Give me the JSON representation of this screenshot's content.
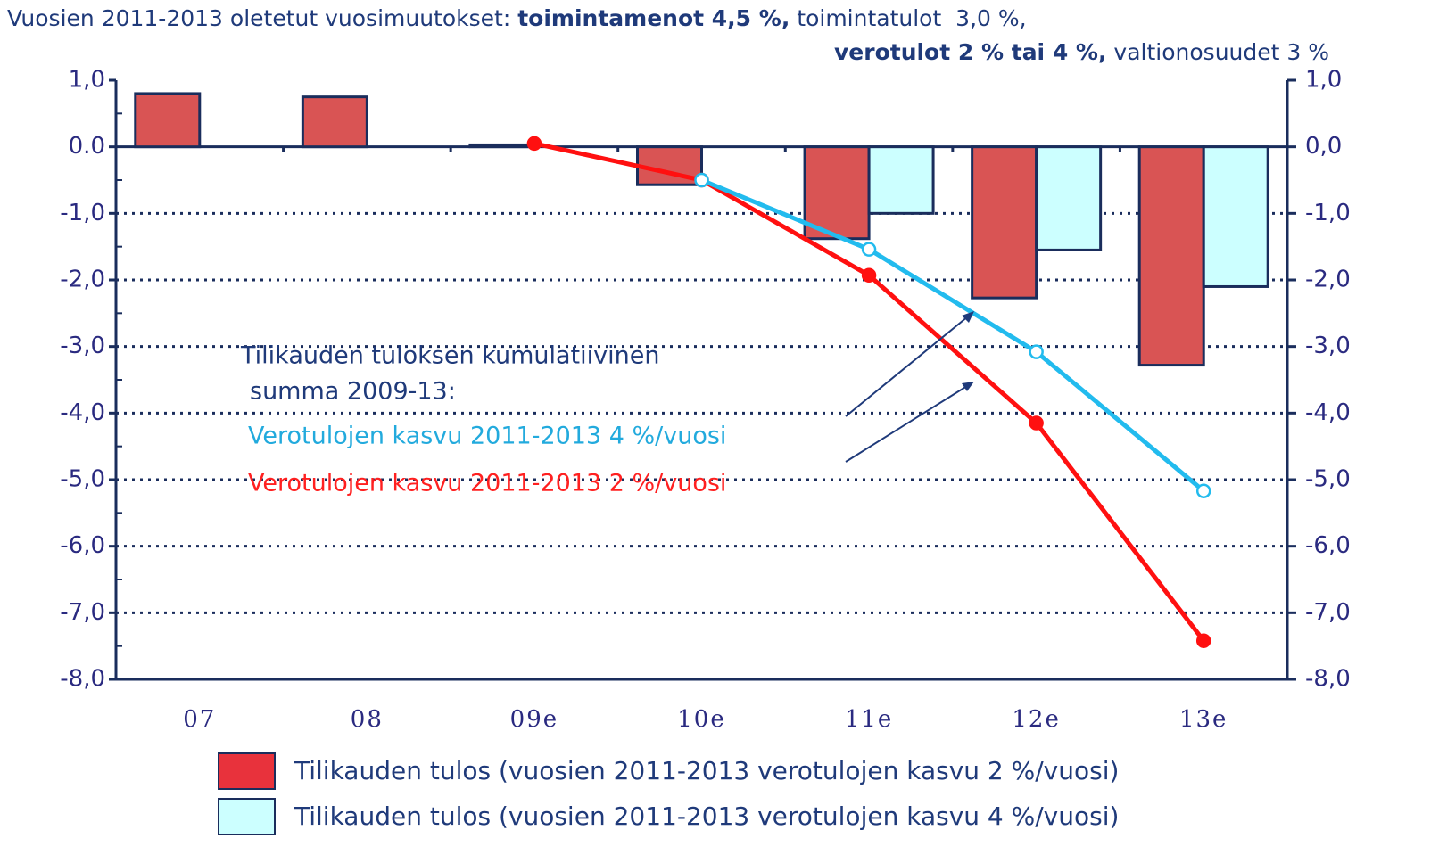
{
  "chart_data": {
    "type": "bar",
    "title": [
      [
        {
          "text": "Vuosien 2011-2013 oletetut vuosimuutokset: ",
          "bold": false
        },
        {
          "text": "toimintamenot 4,5 %,",
          "bold": true
        },
        {
          "text": " toimintatulot  3,0 %,",
          "bold": false
        }
      ],
      [
        {
          "text": "verotulot 2 % tai 4 %,",
          "bold": true
        },
        {
          "text": " valtionosuudet 3 %",
          "bold": false
        }
      ]
    ],
    "categories": [
      "07",
      "08",
      "09e",
      "10e",
      "11e",
      "12e",
      "13e"
    ],
    "series": [
      {
        "name": "Tilikauden tulos (vuosien 2011-2013 verotulojen kasvu 2 %/vuosi)",
        "color": "#d95454",
        "legend_color": "#e8323c",
        "values": [
          0.8,
          0.75,
          0.03,
          -0.57,
          -1.38,
          -2.27,
          -3.28
        ]
      },
      {
        "name": "Tilikauden tulos (vuosien 2011-2013 verotulojen kasvu 4 %/vuosi)",
        "color": "#ccffff",
        "legend_color": "#ccffff",
        "values": [
          null,
          null,
          null,
          null,
          -1.0,
          -1.55,
          -2.1
        ]
      }
    ],
    "lines": [
      {
        "color": "#ff1010",
        "marker_fill": "#ff1010",
        "values": [
          null,
          null,
          0.05,
          -0.5,
          -1.93,
          -4.15,
          -7.42
        ]
      },
      {
        "color": "#22bbee",
        "marker_fill": "#ffffff",
        "values": [
          null,
          null,
          null,
          -0.5,
          -1.54,
          -3.08,
          -5.17
        ]
      }
    ],
    "annotations": [
      {
        "text": "Tilikauden tuloksen kumulatiivinen",
        "color": "#1f3a7a"
      },
      {
        "text": "summa 2009-13:",
        "color": "#1f3a7a"
      },
      {
        "text": "Verotulojen kasvu 2011-2013 4 %/vuosi",
        "color": "#22aadd"
      },
      {
        "text": "Verotulojen kasvu 2011-2013 2 %/vuosi",
        "color": "#ff2020"
      }
    ],
    "ylim": [
      -8,
      1
    ],
    "yticks": [
      {
        "value": 1,
        "label": "1,0"
      },
      {
        "value": 0,
        "label": "0.0"
      },
      {
        "value": -1,
        "label": "-1,0"
      },
      {
        "value": -2,
        "label": "-2,0"
      },
      {
        "value": -3,
        "label": "-3,0"
      },
      {
        "value": -4,
        "label": "-4,0"
      },
      {
        "value": -5,
        "label": "-5,0"
      },
      {
        "value": -6,
        "label": "-6,0"
      },
      {
        "value": -7,
        "label": "-7,0"
      },
      {
        "value": -8,
        "label": "-8,0"
      }
    ],
    "y2lim": [
      -8,
      1
    ],
    "y2ticks": [
      {
        "value": 1,
        "label": "1,0"
      },
      {
        "value": 0,
        "label": "0,0"
      },
      {
        "value": -1,
        "label": "-1,0"
      },
      {
        "value": -2,
        "label": "-2,0"
      },
      {
        "value": -3,
        "label": "-3,0"
      },
      {
        "value": -4,
        "label": "-4,0"
      },
      {
        "value": -5,
        "label": "-5,0"
      },
      {
        "value": -6,
        "label": "-6,0"
      },
      {
        "value": -7,
        "label": "-7,0"
      },
      {
        "value": -8,
        "label": "-8,0"
      }
    ],
    "grid": true
  }
}
